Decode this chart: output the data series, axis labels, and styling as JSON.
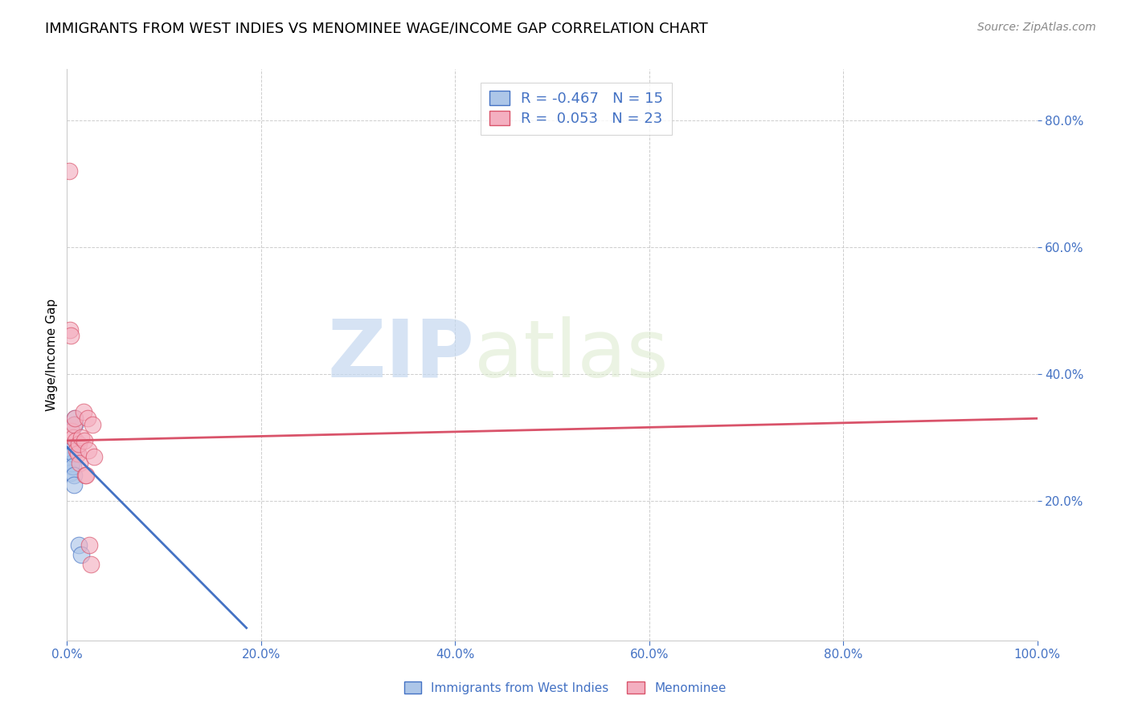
{
  "title": "IMMIGRANTS FROM WEST INDIES VS MENOMINEE WAGE/INCOME GAP CORRELATION CHART",
  "source": "Source: ZipAtlas.com",
  "ylabel": "Wage/Income Gap",
  "xlim": [
    0.0,
    1.0
  ],
  "ylim": [
    -0.02,
    0.88
  ],
  "xtick_labels": [
    "0.0%",
    "20.0%",
    "40.0%",
    "60.0%",
    "80.0%",
    "100.0%"
  ],
  "xtick_values": [
    0.0,
    0.2,
    0.4,
    0.6,
    0.8,
    1.0
  ],
  "ytick_labels": [
    "20.0%",
    "40.0%",
    "60.0%",
    "80.0%"
  ],
  "ytick_values": [
    0.2,
    0.4,
    0.6,
    0.8
  ],
  "blue_scatter_x": [
    0.003,
    0.003,
    0.004,
    0.004,
    0.004,
    0.005,
    0.005,
    0.006,
    0.006,
    0.007,
    0.007,
    0.008,
    0.008,
    0.012,
    0.015
  ],
  "blue_scatter_y": [
    0.285,
    0.27,
    0.265,
    0.255,
    0.245,
    0.28,
    0.26,
    0.275,
    0.255,
    0.24,
    0.225,
    0.33,
    0.32,
    0.13,
    0.115
  ],
  "pink_scatter_x": [
    0.002,
    0.003,
    0.004,
    0.005,
    0.006,
    0.007,
    0.008,
    0.009,
    0.01,
    0.011,
    0.012,
    0.013,
    0.015,
    0.017,
    0.018,
    0.019,
    0.02,
    0.021,
    0.022,
    0.023,
    0.025,
    0.026,
    0.028
  ],
  "pink_scatter_y": [
    0.72,
    0.47,
    0.46,
    0.31,
    0.3,
    0.32,
    0.33,
    0.295,
    0.28,
    0.275,
    0.29,
    0.26,
    0.3,
    0.34,
    0.295,
    0.24,
    0.24,
    0.33,
    0.28,
    0.13,
    0.1,
    0.32,
    0.27
  ],
  "blue_line_x": [
    0.0,
    0.185
  ],
  "blue_line_y": [
    0.285,
    0.0
  ],
  "pink_line_x": [
    0.0,
    1.0
  ],
  "pink_line_y": [
    0.295,
    0.33
  ],
  "blue_color": "#adc6e8",
  "pink_color": "#f4afc0",
  "blue_line_color": "#4472c4",
  "pink_line_color": "#d9536a",
  "legend_R_blue": "R = -0.467",
  "legend_N_blue": "N = 15",
  "legend_R_pink": "R =  0.053",
  "legend_N_pink": "N = 23",
  "watermark_zip": "ZIP",
  "watermark_atlas": "atlas",
  "legend_label_blue": "Immigrants from West Indies",
  "legend_label_pink": "Menominee",
  "title_fontsize": 13,
  "axis_color": "#4472c4",
  "grid_color": "#c8c8c8",
  "scatter_size": 220,
  "scatter_alpha": 0.65
}
